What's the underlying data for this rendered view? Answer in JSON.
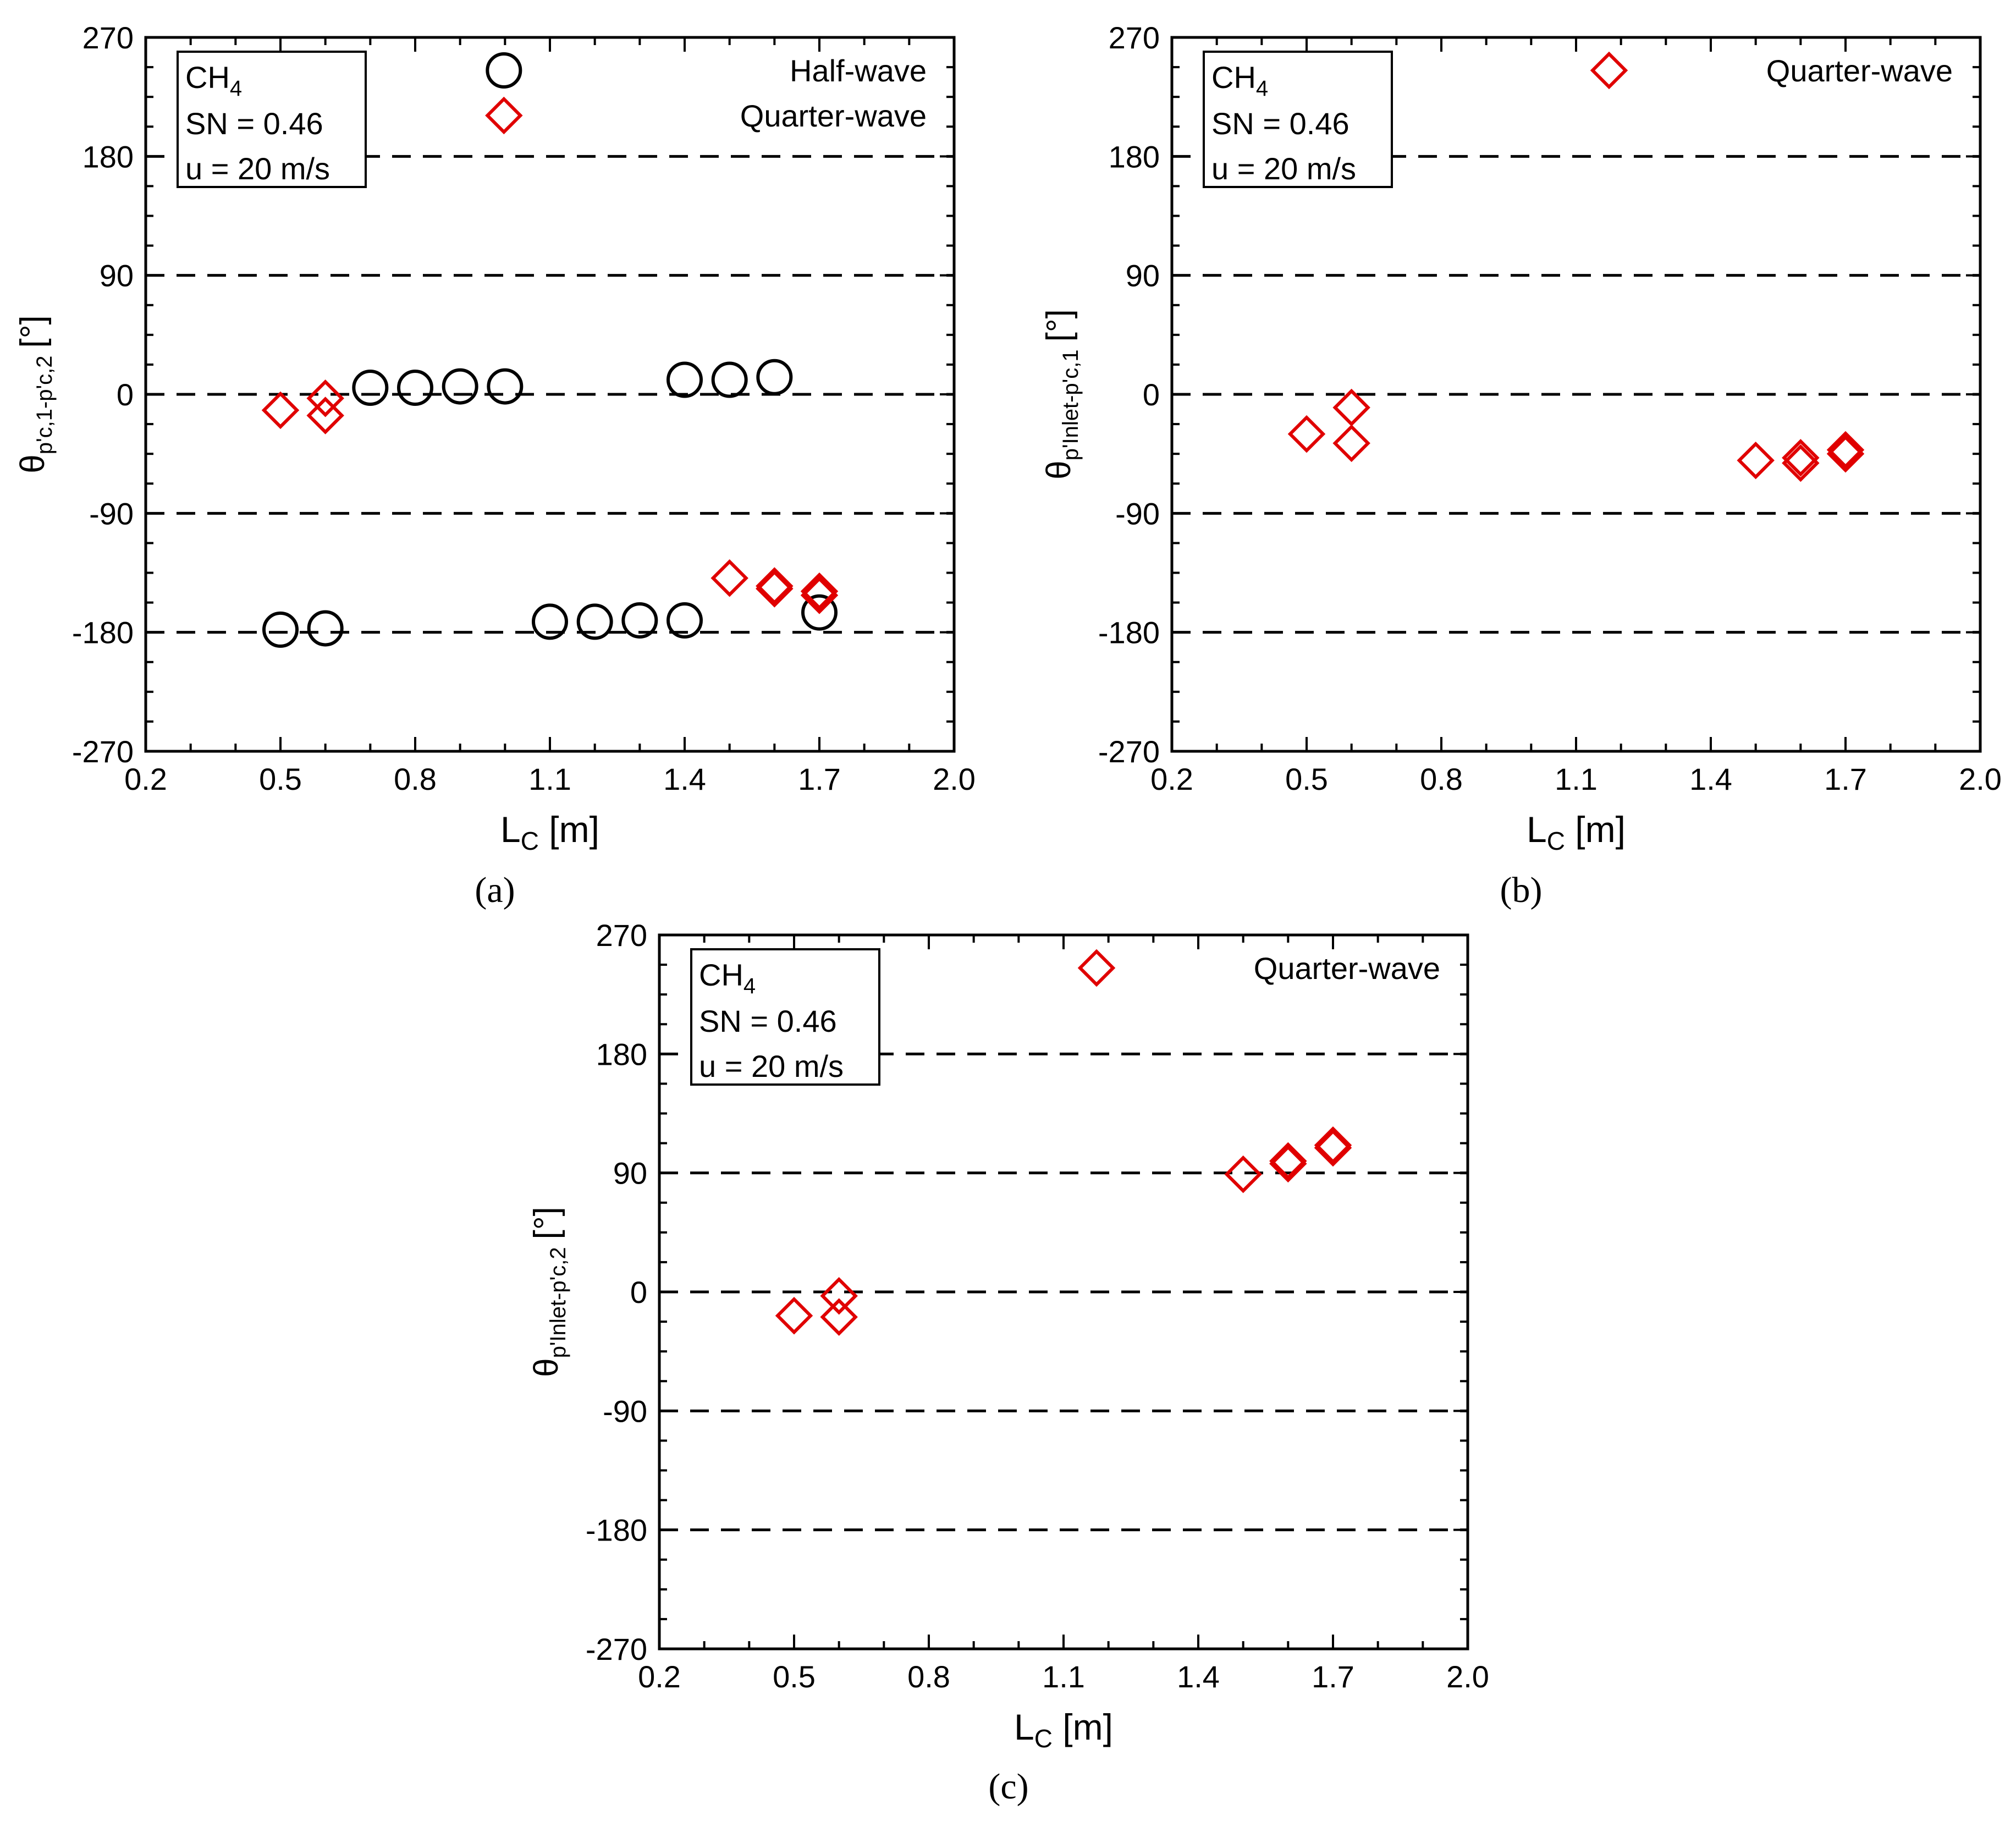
{
  "colors": {
    "half_wave": "#000000",
    "quarter_wave": "#e00000",
    "axis": "#000000"
  },
  "chart_data": [
    {
      "id": "a",
      "type": "scatter",
      "panel_label": "(a)",
      "xlabel": "L_C [m]",
      "xlabel_main": "L",
      "xlabel_sub": "C",
      "xlabel_unit": " [m]",
      "ylabel_main": "θ",
      "ylabel_sub": "p'c,1-p'c,2",
      "ylabel_unit": "[°]",
      "xlim": [
        0.2,
        2.0
      ],
      "ylim": [
        -270,
        270
      ],
      "xticks": [
        "0.2",
        "0.5",
        "0.8",
        "1.1",
        "1.4",
        "1.7",
        "2.0"
      ],
      "yticks": [
        "270",
        "180",
        "90",
        "0",
        "-90",
        "-180",
        "-270"
      ],
      "grid_lines_y": [
        180,
        90,
        0,
        -90,
        -180
      ],
      "info_box": {
        "fuel_main": "CH",
        "fuel_sub": "4",
        "sn": "SN = 0.46",
        "u": "u = 20 m/s"
      },
      "legend": [
        "Half-wave",
        "Quarter-wave"
      ],
      "series": [
        {
          "name": "Half-wave",
          "marker": "circle",
          "points": [
            [
              0.5,
              -178
            ],
            [
              0.6,
              -177
            ],
            [
              0.7,
              5
            ],
            [
              0.8,
              5
            ],
            [
              0.9,
              6
            ],
            [
              1.0,
              6
            ],
            [
              1.1,
              -172
            ],
            [
              1.2,
              -172
            ],
            [
              1.3,
              -171
            ],
            [
              1.4,
              -171
            ],
            [
              1.4,
              11
            ],
            [
              1.5,
              11
            ],
            [
              1.6,
              13
            ],
            [
              1.7,
              -165
            ]
          ]
        },
        {
          "name": "Quarter-wave",
          "marker": "diamond",
          "points": [
            [
              0.5,
              -12
            ],
            [
              0.6,
              -3
            ],
            [
              0.6,
              -16
            ],
            [
              1.5,
              -139
            ],
            [
              1.6,
              -145
            ],
            [
              1.6,
              -147
            ],
            [
              1.7,
              -149
            ],
            [
              1.7,
              -152
            ]
          ]
        }
      ]
    },
    {
      "id": "b",
      "type": "scatter",
      "panel_label": "(b)",
      "xlabel": "L_C [m]",
      "xlabel_main": "L",
      "xlabel_sub": "C",
      "xlabel_unit": " [m]",
      "ylabel_main": "θ",
      "ylabel_sub": "p'Inlet-p'c,1",
      "ylabel_unit": "[°]",
      "xlim": [
        0.2,
        2.0
      ],
      "ylim": [
        -270,
        270
      ],
      "xticks": [
        "0.2",
        "0.5",
        "0.8",
        "1.1",
        "1.4",
        "1.7",
        "2.0"
      ],
      "yticks": [
        "270",
        "180",
        "90",
        "0",
        "-90",
        "-180",
        "-270"
      ],
      "grid_lines_y": [
        180,
        90,
        0,
        -90,
        -180
      ],
      "info_box": {
        "fuel_main": "CH",
        "fuel_sub": "4",
        "sn": "SN = 0.46",
        "u": "u = 20 m/s"
      },
      "legend": [
        "Quarter-wave"
      ],
      "series": [
        {
          "name": "Quarter-wave",
          "marker": "diamond",
          "points": [
            [
              0.5,
              -30
            ],
            [
              0.6,
              -10
            ],
            [
              0.6,
              -37
            ],
            [
              1.5,
              -50
            ],
            [
              1.6,
              -48
            ],
            [
              1.6,
              -52
            ],
            [
              1.7,
              -42
            ],
            [
              1.7,
              -45
            ]
          ]
        }
      ]
    },
    {
      "id": "c",
      "type": "scatter",
      "panel_label": "(c)",
      "xlabel": "L_C [m]",
      "xlabel_main": "L",
      "xlabel_sub": "C",
      "xlabel_unit": " [m]",
      "ylabel_main": "θ",
      "ylabel_sub": "p'Inlet-p'c,2",
      "ylabel_unit": "[°]",
      "xlim": [
        0.2,
        2.0
      ],
      "ylim": [
        -270,
        270
      ],
      "xticks": [
        "0.2",
        "0.5",
        "0.8",
        "1.1",
        "1.4",
        "1.7",
        "2.0"
      ],
      "yticks": [
        "270",
        "180",
        "90",
        "0",
        "-90",
        "-180",
        "-270"
      ],
      "grid_lines_y": [
        180,
        90,
        0,
        -90,
        -180
      ],
      "info_box": {
        "fuel_main": "CH",
        "fuel_sub": "4",
        "sn": "SN = 0.46",
        "u": "u = 20 m/s"
      },
      "legend": [
        "Quarter-wave"
      ],
      "series": [
        {
          "name": "Quarter-wave",
          "marker": "diamond",
          "points": [
            [
              0.5,
              -18
            ],
            [
              0.6,
              -3
            ],
            [
              0.6,
              -19
            ],
            [
              1.5,
              89
            ],
            [
              1.6,
              97
            ],
            [
              1.6,
              99
            ],
            [
              1.7,
              109
            ],
            [
              1.7,
              111
            ]
          ]
        }
      ]
    }
  ]
}
